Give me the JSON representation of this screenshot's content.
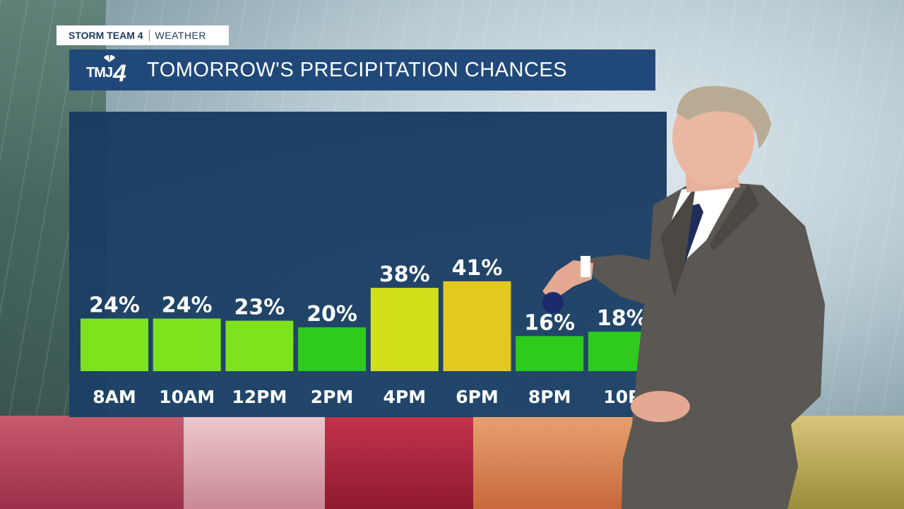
{
  "header": {
    "team": "STORM TEAM 4",
    "category": "WEATHER"
  },
  "logo": {
    "text": "TMJ",
    "number": "4",
    "icon": "peacock-icon"
  },
  "title": "TOMORROW'S PRECIPITATION CHANCES",
  "colors": {
    "panel": "#1b4066",
    "title_bar": "#20497a",
    "low": "#2ecb1e",
    "moderate": "#7ee21c",
    "elevated": "#dcd91b",
    "high": "#e7c61e"
  },
  "chart_data": {
    "type": "bar",
    "categories": [
      "8AM",
      "10AM",
      "12PM",
      "2PM",
      "4PM",
      "6PM",
      "8PM",
      "10PM"
    ],
    "visible_category_labels": [
      "8AM",
      "10AM",
      "12PM",
      "2PM",
      "4PM",
      "6PM",
      "8PM",
      "10P"
    ],
    "values": [
      24,
      24,
      23,
      20,
      38,
      41,
      16,
      18
    ],
    "data_labels": [
      "24%",
      "24%",
      "23%",
      "20%",
      "38%",
      "41%",
      "16%",
      "18%"
    ],
    "bar_colors": [
      "#7ee21c",
      "#7ee21c",
      "#7ee21c",
      "#2ecb1e",
      "#d4df1c",
      "#e2c81f",
      "#2ecb1e",
      "#2ecb1e"
    ],
    "unit": "%",
    "ylim": [
      0,
      100
    ],
    "grid": false
  }
}
